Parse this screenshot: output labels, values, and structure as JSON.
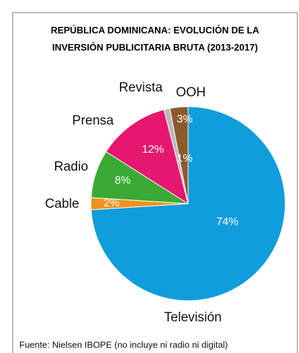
{
  "chart_data": {
    "type": "pie",
    "title": [
      "REPÚBLICA DOMINICANA: EVOLUCIÓN DE LA",
      "INVERSIÓN PUBLICITARIA BRUTA (2013-2017)"
    ],
    "categories": [
      "Televisión",
      "Cable",
      "Radio",
      "Prensa",
      "Revista",
      "OOH"
    ],
    "values": [
      74,
      2,
      8,
      12,
      1,
      3
    ],
    "value_labels": [
      "74%",
      "2%",
      "8%",
      "12%",
      "1%",
      "3%"
    ],
    "colors": [
      "#0f9ddb",
      "#f0931e",
      "#3aaa35",
      "#e5176f",
      "#b9b9b9",
      "#8b5a2b"
    ],
    "source": "Fuente: Nielsen IBOPE (no incluye ni radio ni digital)"
  }
}
